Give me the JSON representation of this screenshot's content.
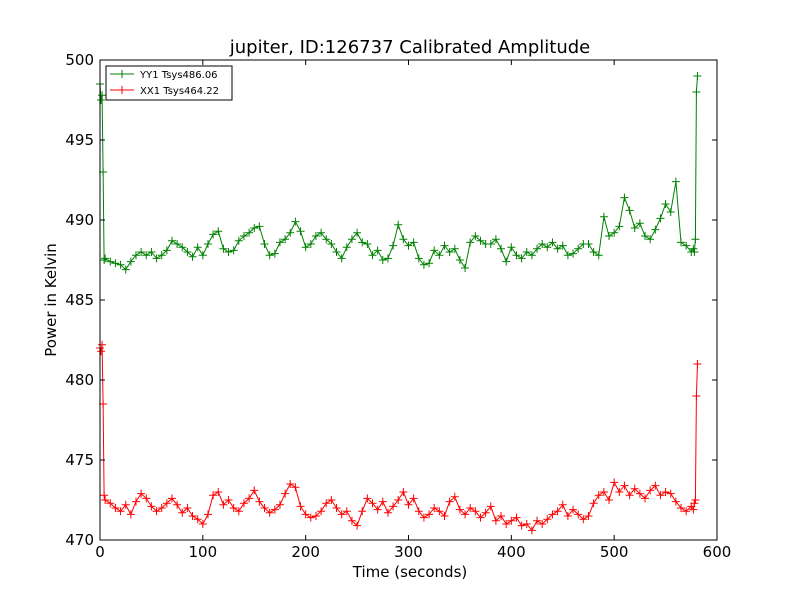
{
  "chart_data": {
    "type": "line",
    "title": "jupiter, ID:126737 Calibrated Amplitude",
    "xlabel": "Time (seconds)",
    "ylabel": "Power in Kelvin",
    "xlim": [
      0,
      600
    ],
    "ylim": [
      470,
      500
    ],
    "x_ticks": [
      "0",
      "100",
      "200",
      "300",
      "400",
      "500",
      "600"
    ],
    "y_ticks": [
      "470",
      "475",
      "480",
      "485",
      "490",
      "495",
      "500"
    ],
    "grid": false,
    "legend_position": "top-left",
    "marker": "+",
    "series": [
      {
        "name": "YY1 Tsys486.06",
        "color": "#008000",
        "x": [
          0,
          1,
          2,
          3,
          4,
          5,
          10,
          15,
          20,
          25,
          30,
          35,
          40,
          45,
          50,
          55,
          60,
          65,
          70,
          75,
          80,
          85,
          90,
          95,
          100,
          105,
          110,
          115,
          120,
          125,
          130,
          135,
          140,
          145,
          150,
          155,
          160,
          165,
          170,
          175,
          180,
          185,
          190,
          195,
          200,
          205,
          210,
          215,
          220,
          225,
          230,
          235,
          240,
          245,
          250,
          255,
          260,
          265,
          270,
          275,
          280,
          285,
          290,
          295,
          300,
          305,
          310,
          315,
          320,
          325,
          330,
          335,
          340,
          345,
          350,
          355,
          360,
          365,
          370,
          375,
          380,
          385,
          390,
          395,
          400,
          405,
          410,
          415,
          420,
          425,
          430,
          435,
          440,
          445,
          450,
          455,
          460,
          465,
          470,
          475,
          480,
          485,
          490,
          495,
          500,
          505,
          510,
          515,
          520,
          525,
          530,
          535,
          540,
          545,
          550,
          555,
          560,
          565,
          570,
          575,
          577,
          578,
          579,
          580,
          581
        ],
        "values": [
          498.5,
          497.5,
          497.8,
          493.0,
          487.5,
          487.6,
          487.4,
          487.3,
          487.2,
          486.9,
          487.4,
          487.8,
          488.0,
          487.8,
          488.0,
          487.6,
          487.8,
          488.1,
          488.7,
          488.5,
          488.3,
          488.0,
          487.7,
          488.3,
          487.8,
          488.5,
          489.1,
          489.3,
          488.2,
          488.0,
          488.1,
          488.7,
          489.0,
          489.2,
          489.5,
          489.6,
          488.5,
          487.8,
          487.9,
          488.6,
          488.8,
          489.2,
          489.9,
          489.3,
          488.3,
          488.5,
          489.0,
          489.2,
          488.8,
          488.5,
          488.0,
          487.6,
          488.3,
          488.8,
          489.2,
          488.6,
          488.5,
          487.8,
          488.1,
          487.5,
          487.6,
          488.4,
          489.7,
          488.8,
          488.4,
          488.6,
          487.6,
          487.2,
          487.3,
          488.1,
          487.8,
          488.4,
          488.0,
          488.2,
          487.5,
          487.0,
          488.6,
          489.0,
          488.7,
          488.5,
          488.5,
          488.8,
          488.2,
          487.4,
          488.3,
          487.8,
          487.6,
          488.0,
          487.8,
          488.2,
          488.5,
          488.3,
          488.6,
          488.2,
          488.4,
          487.8,
          487.9,
          488.2,
          488.5,
          488.5,
          488.0,
          487.8,
          490.2,
          489.0,
          489.2,
          489.6,
          491.4,
          490.6,
          489.5,
          489.8,
          489.0,
          488.8,
          489.4,
          490.1,
          491.0,
          490.5,
          492.4,
          488.6,
          488.4,
          488.0,
          488.2,
          488.0,
          488.8,
          498.0,
          499.0
        ]
      },
      {
        "name": "XX1 Tsys464.22",
        "color": "#ff0000",
        "x": [
          0,
          1,
          2,
          3,
          4,
          5,
          10,
          15,
          20,
          25,
          30,
          35,
          40,
          45,
          50,
          55,
          60,
          65,
          70,
          75,
          80,
          85,
          90,
          95,
          100,
          105,
          110,
          115,
          120,
          125,
          130,
          135,
          140,
          145,
          150,
          155,
          160,
          165,
          170,
          175,
          180,
          185,
          190,
          195,
          200,
          205,
          210,
          215,
          220,
          225,
          230,
          235,
          240,
          245,
          250,
          255,
          260,
          265,
          270,
          275,
          280,
          285,
          290,
          295,
          300,
          305,
          310,
          315,
          320,
          325,
          330,
          335,
          340,
          345,
          350,
          355,
          360,
          365,
          370,
          375,
          380,
          385,
          390,
          395,
          400,
          405,
          410,
          415,
          420,
          425,
          430,
          435,
          440,
          445,
          450,
          455,
          460,
          465,
          470,
          475,
          480,
          485,
          490,
          495,
          500,
          505,
          510,
          515,
          520,
          525,
          530,
          535,
          540,
          545,
          550,
          555,
          560,
          565,
          570,
          575,
          577,
          578,
          579,
          580,
          581
        ],
        "values": [
          482.0,
          481.8,
          482.2,
          478.5,
          472.8,
          472.5,
          472.3,
          472.0,
          471.8,
          472.2,
          471.6,
          472.4,
          472.9,
          472.6,
          472.1,
          471.8,
          472.0,
          472.3,
          472.6,
          472.2,
          471.7,
          472.0,
          471.5,
          471.3,
          471.0,
          471.6,
          472.8,
          473.0,
          472.2,
          472.5,
          472.0,
          471.8,
          472.3,
          472.6,
          473.1,
          472.4,
          472.0,
          471.7,
          471.9,
          472.2,
          472.9,
          473.5,
          473.3,
          472.1,
          471.6,
          471.4,
          471.5,
          471.8,
          472.3,
          472.5,
          472.0,
          471.6,
          471.8,
          471.2,
          470.9,
          471.8,
          472.6,
          472.3,
          471.9,
          472.4,
          471.7,
          472.1,
          472.5,
          473.0,
          472.2,
          472.6,
          471.8,
          471.4,
          471.6,
          472.0,
          471.8,
          471.5,
          472.4,
          472.7,
          471.9,
          471.6,
          472.0,
          471.8,
          471.4,
          471.7,
          472.1,
          471.2,
          471.5,
          471.0,
          471.2,
          471.4,
          470.9,
          471.0,
          470.6,
          471.2,
          471.0,
          471.3,
          471.6,
          471.8,
          472.2,
          471.5,
          471.9,
          471.6,
          471.3,
          471.5,
          472.3,
          472.8,
          473.0,
          472.5,
          473.6,
          473.0,
          473.4,
          472.8,
          473.2,
          472.9,
          472.6,
          473.1,
          473.4,
          472.8,
          473.0,
          472.9,
          472.4,
          472.0,
          471.8,
          472.1,
          471.9,
          472.3,
          472.5,
          479.0,
          481.0
        ]
      }
    ]
  }
}
